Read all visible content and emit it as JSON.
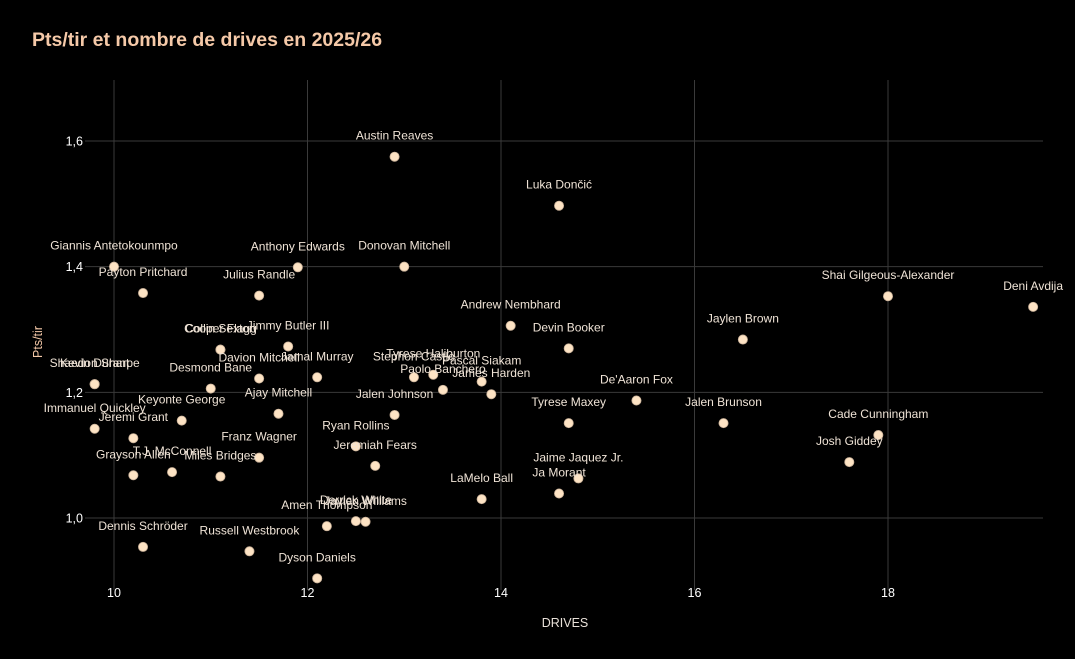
{
  "chart_data": {
    "type": "scatter",
    "title": "Pts/tir et nombre de drives en 2025/26",
    "xlabel": "DRIVES",
    "ylabel": "Pts/tir",
    "xlim": [
      9.75,
      19.55
    ],
    "ylim": [
      0.905,
      1.7
    ],
    "xticks": [
      10,
      12,
      14,
      16,
      18
    ],
    "yticks": [
      1.0,
      1.2,
      1.4,
      1.6
    ],
    "xtick_labels": [
      "10",
      "12",
      "14",
      "16",
      "18"
    ],
    "ytick_labels": [
      "1,0",
      "1,2",
      "1,4",
      "1,6"
    ],
    "grid": true,
    "marker_color": "#fde3c4",
    "points": [
      {
        "label": "Austin Reaves",
        "x": 12.9,
        "y": 1.575
      },
      {
        "label": "Luka Dončić",
        "x": 14.6,
        "y": 1.497
      },
      {
        "label": "Giannis Antetokounmpo",
        "x": 10.0,
        "y": 1.4
      },
      {
        "label": "Anthony Edwards",
        "x": 11.9,
        "y": 1.399
      },
      {
        "label": "Donovan Mitchell",
        "x": 13.0,
        "y": 1.4
      },
      {
        "label": "Payton Pritchard",
        "x": 10.3,
        "y": 1.358
      },
      {
        "label": "Julius Randle",
        "x": 11.5,
        "y": 1.354
      },
      {
        "label": "Shai Gilgeous-Alexander",
        "x": 18.0,
        "y": 1.353
      },
      {
        "label": "Deni Avdija",
        "x": 19.5,
        "y": 1.336
      },
      {
        "label": "Andrew Nembhard",
        "x": 14.1,
        "y": 1.306
      },
      {
        "label": "Jaylen Brown",
        "x": 16.5,
        "y": 1.284
      },
      {
        "label": "Cooper Flagg",
        "x": 11.1,
        "y": 1.268
      },
      {
        "label": "Collin Sexton",
        "x": 11.1,
        "y": 1.268
      },
      {
        "label": "Jimmy Butler III",
        "x": 11.8,
        "y": 1.273
      },
      {
        "label": "Devin Booker",
        "x": 14.7,
        "y": 1.27
      },
      {
        "label": "Kevin Durant",
        "x": 9.8,
        "y": 1.213
      },
      {
        "label": "Shaedon Sharpe",
        "x": 9.8,
        "y": 1.213
      },
      {
        "label": "Davion Mitchell",
        "x": 11.5,
        "y": 1.222
      },
      {
        "label": "Desmond Bane",
        "x": 11.0,
        "y": 1.206
      },
      {
        "label": "Jamal Murray",
        "x": 12.1,
        "y": 1.224
      },
      {
        "label": "Stephon Castle",
        "x": 13.1,
        "y": 1.224
      },
      {
        "label": "Tyrese Haliburton",
        "x": 13.3,
        "y": 1.228
      },
      {
        "label": "Pascal Siakam",
        "x": 13.8,
        "y": 1.217
      },
      {
        "label": "Paolo Banchero",
        "x": 13.4,
        "y": 1.204
      },
      {
        "label": "James Harden",
        "x": 13.9,
        "y": 1.197
      },
      {
        "label": "De'Aaron Fox",
        "x": 15.4,
        "y": 1.187
      },
      {
        "label": "Keyonte George",
        "x": 10.7,
        "y": 1.155
      },
      {
        "label": "Ajay Mitchell",
        "x": 11.7,
        "y": 1.166
      },
      {
        "label": "Jalen Johnson",
        "x": 12.9,
        "y": 1.164
      },
      {
        "label": "Tyrese Maxey",
        "x": 14.7,
        "y": 1.151
      },
      {
        "label": "Jalen Brunson",
        "x": 16.3,
        "y": 1.151
      },
      {
        "label": "Immanuel Quickley",
        "x": 9.8,
        "y": 1.142
      },
      {
        "label": "Jeremi Grant",
        "x": 10.2,
        "y": 1.127
      },
      {
        "label": "Cade Cunningham",
        "x": 17.9,
        "y": 1.132
      },
      {
        "label": "Franz Wagner",
        "x": 11.5,
        "y": 1.096
      },
      {
        "label": "Ryan Rollins",
        "x": 12.5,
        "y": 1.114
      },
      {
        "label": "Josh Giddey",
        "x": 17.6,
        "y": 1.089
      },
      {
        "label": "T.J. McConnell",
        "x": 10.6,
        "y": 1.073
      },
      {
        "label": "Grayson Allen",
        "x": 10.2,
        "y": 1.068
      },
      {
        "label": "Miles Bridges",
        "x": 11.1,
        "y": 1.066
      },
      {
        "label": "Jeremiah Fears",
        "x": 12.7,
        "y": 1.083
      },
      {
        "label": "Jaime Jaquez Jr.",
        "x": 14.8,
        "y": 1.063
      },
      {
        "label": "Ja Morant",
        "x": 14.6,
        "y": 1.039
      },
      {
        "label": "LaMelo Ball",
        "x": 13.8,
        "y": 1.03
      },
      {
        "label": "Derrick White",
        "x": 12.5,
        "y": 0.995
      },
      {
        "label": "Jaylen Williams",
        "x": 12.6,
        "y": 0.994
      },
      {
        "label": "Amen Thompson",
        "x": 12.2,
        "y": 0.987
      },
      {
        "label": "Dennis Schröder",
        "x": 10.3,
        "y": 0.954
      },
      {
        "label": "Russell Westbrook",
        "x": 11.4,
        "y": 0.947
      },
      {
        "label": "Dyson Daniels",
        "x": 12.1,
        "y": 0.904
      }
    ]
  }
}
